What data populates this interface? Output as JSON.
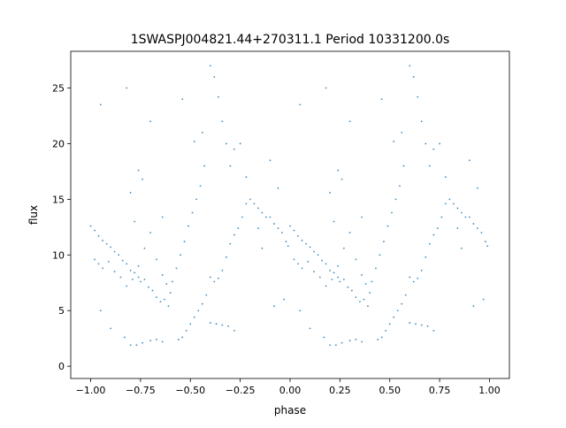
{
  "chart_data": {
    "type": "scatter",
    "title": "1SWASPJ004821.44+270311.1 Period 10331200.0s",
    "xlabel": "phase",
    "ylabel": "flux",
    "xlim": [
      -1.1,
      1.1
    ],
    "ylim": [
      -1.1,
      28.3
    ],
    "x_ticks": [
      -1.0,
      -0.75,
      -0.5,
      -0.25,
      0.0,
      0.25,
      0.5,
      0.75,
      1.0
    ],
    "x_tick_labels": [
      "−1.00",
      "−0.75",
      "−0.50",
      "−0.25",
      "0.00",
      "0.25",
      "0.50",
      "0.75",
      "1.00"
    ],
    "y_ticks": [
      0,
      5,
      10,
      15,
      20,
      25
    ],
    "y_tick_labels": [
      "0",
      "5",
      "10",
      "15",
      "20",
      "25"
    ],
    "grid": false,
    "legend": "none",
    "marker_color": "#1f77b4",
    "marker_size_pt": 1,
    "series": [
      {
        "period_repeat": 1.0,
        "points": [
          [
            0.0,
            12.6
          ],
          [
            0.02,
            12.2
          ],
          [
            0.04,
            11.7
          ],
          [
            0.06,
            11.3
          ],
          [
            0.08,
            11.0
          ],
          [
            0.1,
            10.7
          ],
          [
            0.12,
            10.3
          ],
          [
            0.14,
            10.0
          ],
          [
            0.16,
            9.5
          ],
          [
            0.18,
            9.2
          ],
          [
            0.2,
            8.6
          ],
          [
            0.22,
            8.4
          ],
          [
            0.24,
            8.0
          ],
          [
            0.25,
            7.6
          ],
          [
            0.27,
            7.8
          ],
          [
            0.29,
            7.1
          ],
          [
            0.31,
            6.8
          ],
          [
            0.33,
            6.2
          ],
          [
            0.35,
            5.8
          ],
          [
            0.37,
            6.0
          ],
          [
            0.39,
            5.4
          ],
          [
            0.41,
            7.6
          ],
          [
            0.43,
            8.8
          ],
          [
            0.45,
            10.0
          ],
          [
            0.47,
            11.2
          ],
          [
            0.49,
            12.6
          ],
          [
            0.51,
            13.8
          ],
          [
            0.53,
            15.0
          ],
          [
            0.55,
            16.2
          ],
          [
            0.57,
            18.0
          ],
          [
            0.44,
            2.4
          ],
          [
            0.46,
            2.6
          ],
          [
            0.48,
            3.2
          ],
          [
            0.5,
            3.8
          ],
          [
            0.52,
            4.4
          ],
          [
            0.54,
            5.0
          ],
          [
            0.56,
            5.6
          ],
          [
            0.58,
            6.4
          ],
          [
            0.6,
            3.9
          ],
          [
            0.63,
            3.8
          ],
          [
            0.66,
            3.7
          ],
          [
            0.69,
            3.6
          ],
          [
            0.72,
            3.2
          ],
          [
            0.6,
            8.0
          ],
          [
            0.62,
            7.6
          ],
          [
            0.64,
            7.9
          ],
          [
            0.66,
            8.6
          ],
          [
            0.68,
            9.8
          ],
          [
            0.7,
            11.0
          ],
          [
            0.72,
            11.8
          ],
          [
            0.74,
            12.4
          ],
          [
            0.76,
            13.4
          ],
          [
            0.78,
            14.6
          ],
          [
            0.8,
            15.0
          ],
          [
            0.82,
            14.6
          ],
          [
            0.84,
            14.2
          ],
          [
            0.86,
            13.8
          ],
          [
            0.88,
            13.4
          ],
          [
            0.9,
            13.4
          ],
          [
            0.92,
            12.8
          ],
          [
            0.94,
            12.4
          ],
          [
            0.96,
            12.0
          ],
          [
            0.98,
            11.2
          ],
          [
            0.99,
            10.8
          ],
          [
            0.02,
            9.6
          ],
          [
            0.04,
            9.2
          ],
          [
            0.06,
            8.8
          ],
          [
            0.09,
            9.4
          ],
          [
            0.12,
            8.5
          ],
          [
            0.15,
            8.0
          ],
          [
            0.18,
            7.2
          ],
          [
            0.21,
            7.8
          ],
          [
            0.24,
            9.0
          ],
          [
            0.27,
            10.6
          ],
          [
            0.3,
            12.0
          ],
          [
            0.33,
            9.6
          ],
          [
            0.36,
            8.2
          ],
          [
            0.38,
            7.4
          ],
          [
            0.17,
            2.6
          ],
          [
            0.2,
            1.9
          ],
          [
            0.23,
            1.9
          ],
          [
            0.26,
            2.1
          ],
          [
            0.3,
            2.3
          ],
          [
            0.33,
            2.4
          ],
          [
            0.36,
            2.2
          ],
          [
            0.05,
            23.5
          ],
          [
            0.18,
            25.0
          ],
          [
            0.3,
            22.0
          ],
          [
            0.46,
            24.0
          ],
          [
            0.6,
            27.0
          ],
          [
            0.62,
            26.0
          ],
          [
            0.64,
            24.2
          ],
          [
            0.66,
            22.0
          ],
          [
            0.68,
            20.0
          ],
          [
            0.7,
            18.0
          ],
          [
            0.72,
            19.5
          ],
          [
            0.75,
            20.0
          ],
          [
            0.78,
            17.0
          ],
          [
            0.9,
            18.5
          ],
          [
            0.94,
            16.0
          ],
          [
            0.2,
            15.6
          ],
          [
            0.24,
            17.6
          ],
          [
            0.26,
            16.8
          ],
          [
            0.36,
            13.4
          ],
          [
            0.52,
            20.2
          ],
          [
            0.56,
            21.0
          ],
          [
            0.84,
            12.4
          ],
          [
            0.86,
            10.6
          ],
          [
            0.97,
            6.0
          ],
          [
            0.92,
            5.4
          ],
          [
            0.05,
            5.0
          ],
          [
            0.1,
            3.4
          ],
          [
            0.22,
            13.0
          ],
          [
            0.4,
            6.6
          ]
        ]
      }
    ]
  }
}
